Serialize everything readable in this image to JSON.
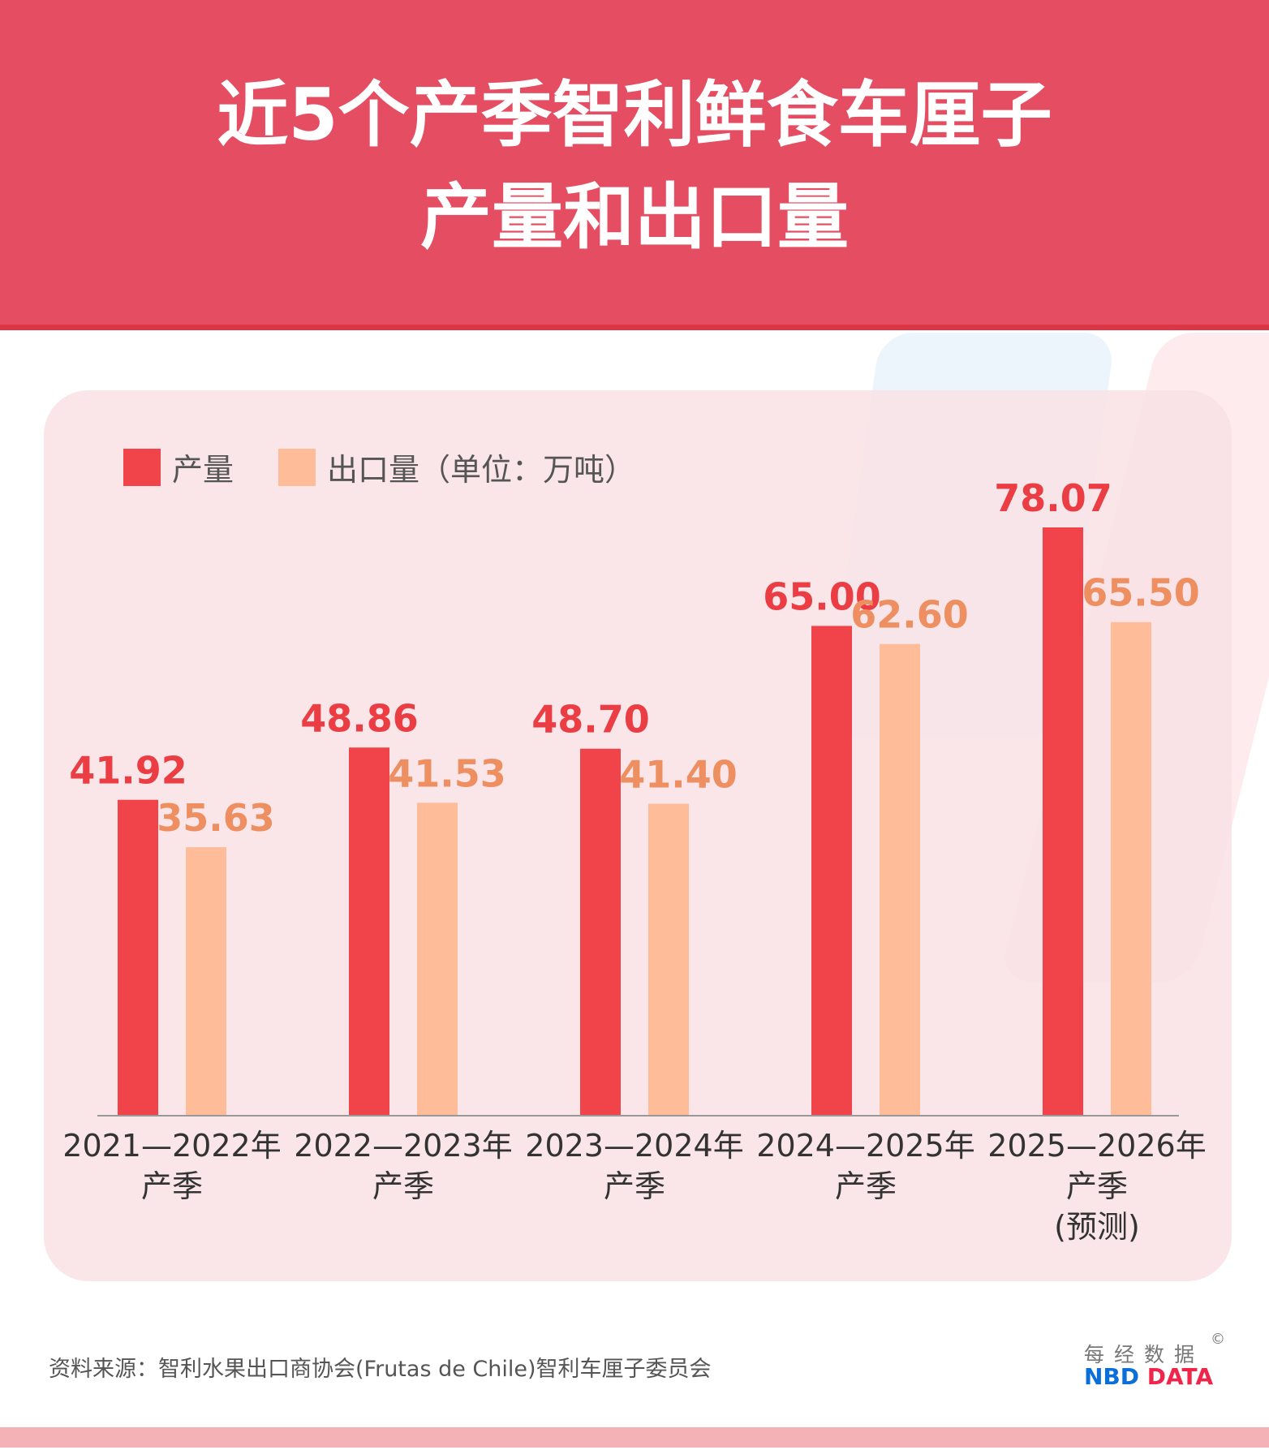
{
  "title": {
    "line1": "近5个产季智利鲜食车厘子",
    "line2": "产量和出口量"
  },
  "legend": {
    "production": "产量",
    "export": "出口量（单位：万吨）"
  },
  "source": "资料来源：智利水果出口商协会(Frutas de Chile)智利车厘子委员会",
  "logo": {
    "cn": "每经数据",
    "copyright": "©",
    "en_blue": "NBD",
    "en_red": "DATA"
  },
  "colors": {
    "header": "#e44d62",
    "production": "#f0444a",
    "export": "#ffbc98",
    "production_label": "#ea3d44",
    "export_label": "#ee8f62"
  },
  "chart_data": {
    "type": "bar",
    "categories": [
      [
        "2021—2022年",
        "产季"
      ],
      [
        "2022—2023年",
        "产季"
      ],
      [
        "2023—2024年",
        "产季"
      ],
      [
        "2024—2025年",
        "产季"
      ],
      [
        "2025—2026年",
        "产季",
        "(预测)"
      ]
    ],
    "series": [
      {
        "name": "产量",
        "values": [
          41.92,
          48.86,
          48.7,
          65.0,
          78.07
        ],
        "labels": [
          "41.92",
          "48.86",
          "48.70",
          "65.00",
          "78.07"
        ]
      },
      {
        "name": "出口量",
        "values": [
          35.63,
          41.53,
          41.4,
          62.6,
          65.5
        ],
        "labels": [
          "35.63",
          "41.53",
          "41.40",
          "62.60",
          "65.50"
        ]
      }
    ],
    "unit": "万吨",
    "ylim": [
      0,
      80
    ],
    "grid": false,
    "legend_position": "top-left"
  }
}
